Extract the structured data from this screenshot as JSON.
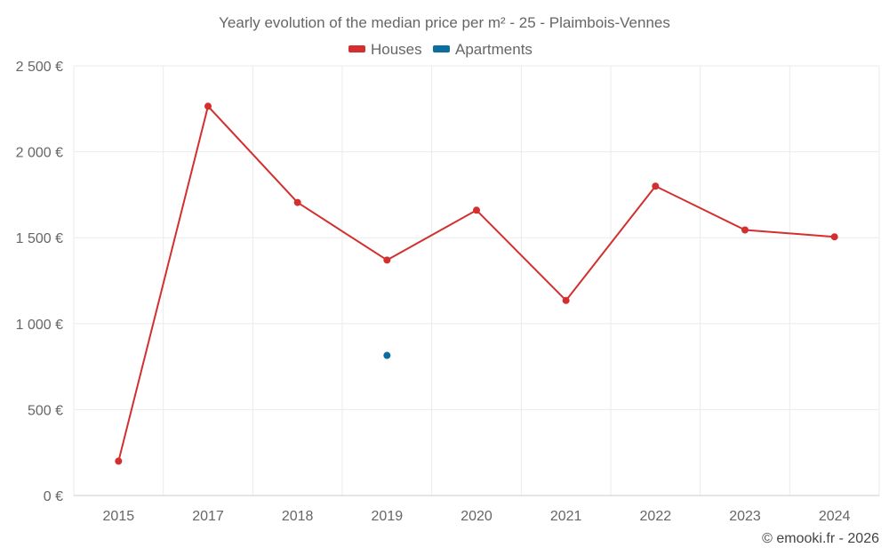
{
  "chart_data": {
    "type": "line",
    "title": "Yearly evolution of the median price per m² - 25 - Plaimbois-Vennes",
    "categories": [
      "2015",
      "2017",
      "2018",
      "2019",
      "2020",
      "2021",
      "2022",
      "2023",
      "2024"
    ],
    "y_ticks": [
      "0 €",
      "500 €",
      "1 000 €",
      "1 500 €",
      "2 000 €",
      "2 500 €"
    ],
    "ylim": [
      0,
      2500
    ],
    "grid": true,
    "legend_position": "top-center",
    "series": [
      {
        "name": "Houses",
        "color": "#d32f2f",
        "values": [
          200,
          2265,
          1705,
          1370,
          1660,
          1135,
          1800,
          1545,
          1505
        ]
      },
      {
        "name": "Apartments",
        "color": "#0b6e9e",
        "values": [
          null,
          null,
          null,
          815,
          null,
          null,
          null,
          null,
          null
        ]
      }
    ]
  },
  "credit": "© emooki.fr - 2026"
}
